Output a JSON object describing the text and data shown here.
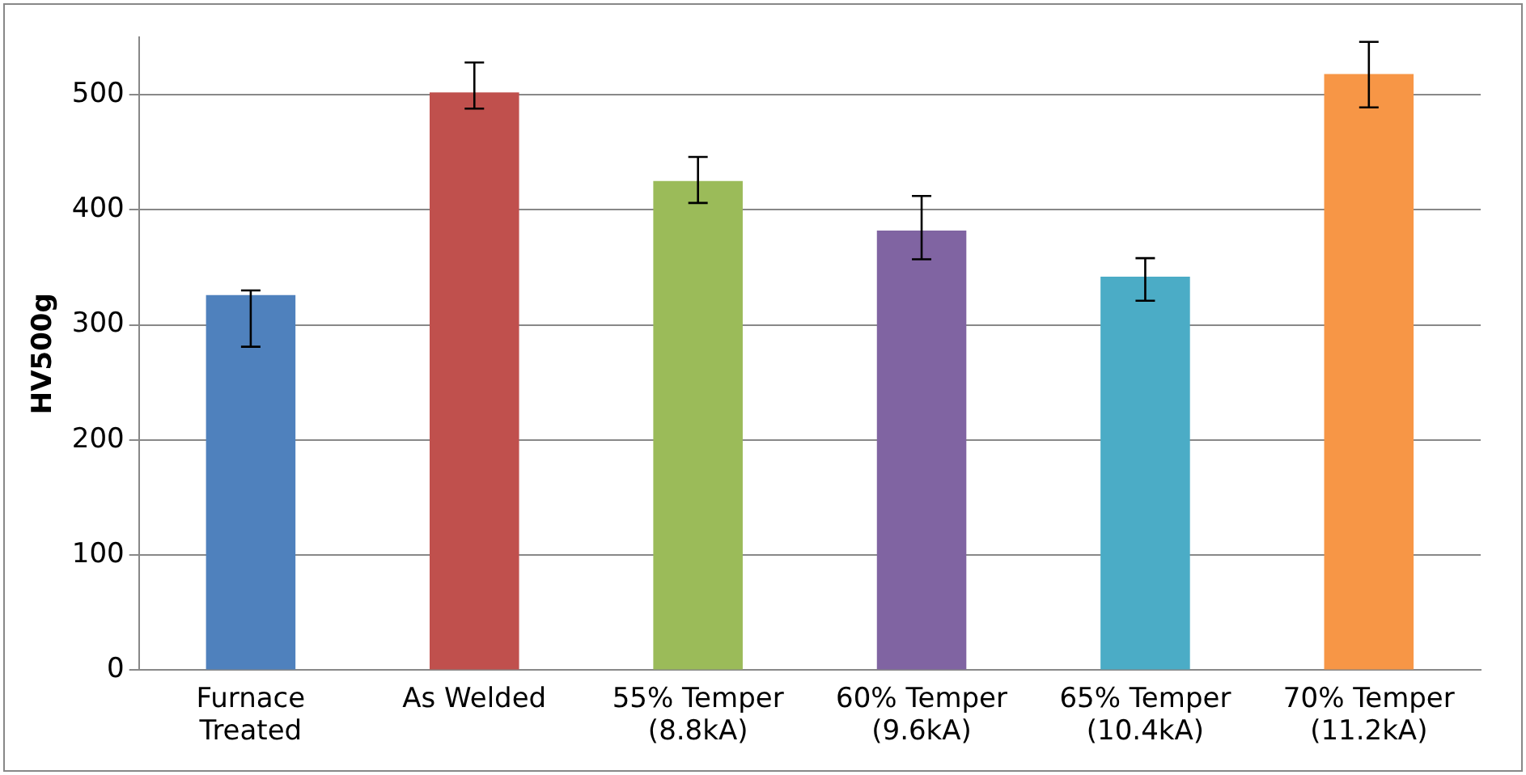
{
  "chart_data": {
    "type": "bar",
    "ylabel": "HV500g",
    "categories": [
      "Furnace\nTreated",
      "As Welded",
      "55% Temper\n(8.8kA)",
      "60% Temper\n(9.6kA)",
      "65% Temper\n(10.4kA)",
      "70% Temper\n(11.2kA)"
    ],
    "values": [
      326,
      502,
      425,
      382,
      342,
      518
    ],
    "colors": [
      "#4f81bd",
      "#c0504d",
      "#9bbb59",
      "#8064a2",
      "#4bacc6",
      "#f79646"
    ],
    "errors": [
      [
        281,
        330
      ],
      [
        488,
        528
      ],
      [
        406,
        446
      ],
      [
        357,
        412
      ],
      [
        321,
        358
      ],
      [
        489,
        546
      ]
    ],
    "ylim": [
      0,
      550
    ],
    "yticks": [
      0,
      100,
      200,
      300,
      400,
      500
    ],
    "grid": "y",
    "legend": false
  }
}
